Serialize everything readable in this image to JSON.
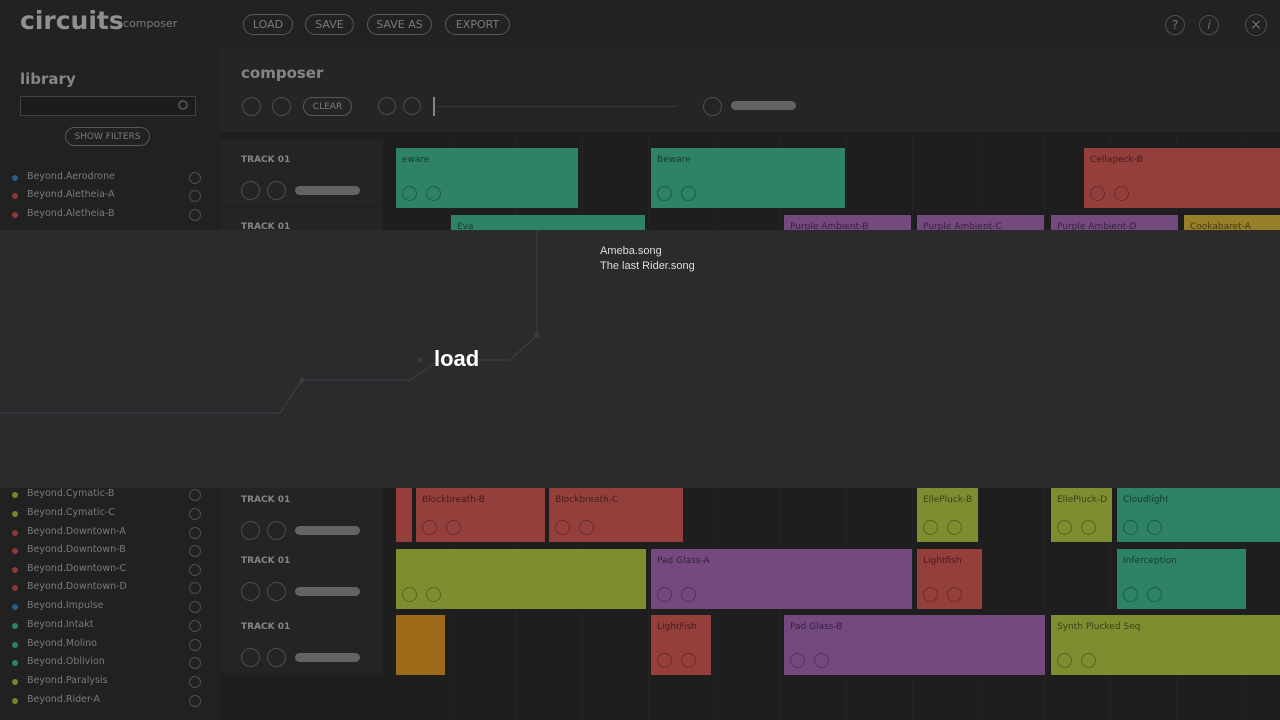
{
  "header": {
    "logo": "circuits",
    "subtitle": "composer",
    "buttons": [
      "LOAD",
      "SAVE",
      "SAVE AS",
      "EXPORT"
    ]
  },
  "library": {
    "title": "library",
    "filter_button": "SHOW FILTERS",
    "items": [
      {
        "name": "Beyond.Aerodrone",
        "color": "#3f8fd0"
      },
      {
        "name": "Beyond.Aletheia-A",
        "color": "#d65a55"
      },
      {
        "name": "Beyond.Aletheia-B",
        "color": "#d65a55"
      },
      {
        "name": "Beyond.Cymatic-B",
        "color": "#b9c94a"
      },
      {
        "name": "Beyond.Cymatic-C",
        "color": "#b9c94a"
      },
      {
        "name": "Beyond.Downtown-A",
        "color": "#d65a55"
      },
      {
        "name": "Beyond.Downtown-B",
        "color": "#d65a55"
      },
      {
        "name": "Beyond.Downtown-C",
        "color": "#d65a55"
      },
      {
        "name": "Beyond.Downtown-D",
        "color": "#d65a55"
      },
      {
        "name": "Beyond.Impulse",
        "color": "#3f8fd0"
      },
      {
        "name": "Beyond.Intakt",
        "color": "#45c99a"
      },
      {
        "name": "Beyond.Molino",
        "color": "#45c99a"
      },
      {
        "name": "Beyond.Oblivion",
        "color": "#45c99a"
      },
      {
        "name": "Beyond.Paralysis",
        "color": "#b9c94a"
      },
      {
        "name": "Beyond.Rider-A",
        "color": "#b9c94a"
      }
    ]
  },
  "composer": {
    "title": "composer",
    "clear_button": "CLEAR",
    "tracks": [
      {
        "label": "TRACK 01",
        "clips": [
          {
            "name": "eware",
            "color": "#45c99a"
          },
          {
            "name": "Beware",
            "color": "#45c99a"
          },
          {
            "name": "Cellapeck-B",
            "color": "#e3625d"
          }
        ]
      },
      {
        "label": "TRACK 01",
        "clips": [
          {
            "name": "Eva",
            "color": "#45c99a"
          },
          {
            "name": "Purple Ambient-B",
            "color": "#b271c4"
          },
          {
            "name": "Purple Ambient-C",
            "color": "#b271c4"
          },
          {
            "name": "Purple Ambient-D",
            "color": "#b271c4"
          },
          {
            "name": "Cookabaret-A",
            "color": "#e6c33e"
          }
        ]
      },
      {
        "label": "TRACK 01",
        "clips": [
          {
            "color": "#e3625d"
          },
          {
            "name": "Blockbreath-B",
            "color": "#e3625d"
          },
          {
            "name": "Blockbreath-C",
            "color": "#e3625d"
          },
          {
            "name": "EllePluck-B",
            "color": "#c3d94c"
          },
          {
            "name": "EllePluck-D",
            "color": "#c3d94c"
          },
          {
            "name": "Cloudlight",
            "color": "#45c99a"
          }
        ]
      },
      {
        "label": "TRACK 01",
        "clips": [
          {
            "color": "#c3d94c"
          },
          {
            "name": "Pad Glass-A",
            "color": "#b271c4"
          },
          {
            "name": "Lightfish",
            "color": "#e3625d"
          },
          {
            "name": "Inferception",
            "color": "#45c99a"
          }
        ]
      },
      {
        "label": "TRACK 01",
        "clips": [
          {
            "color": "#f0a326"
          },
          {
            "name": "LightFish",
            "color": "#e3625d"
          },
          {
            "name": "Pad Glass-B",
            "color": "#b271c4"
          },
          {
            "name": "Synth Plucked Seq",
            "color": "#c3d94c"
          }
        ]
      }
    ]
  },
  "dialog": {
    "title": "load",
    "files": [
      "Ameba.song",
      "The last Rider.song"
    ]
  }
}
